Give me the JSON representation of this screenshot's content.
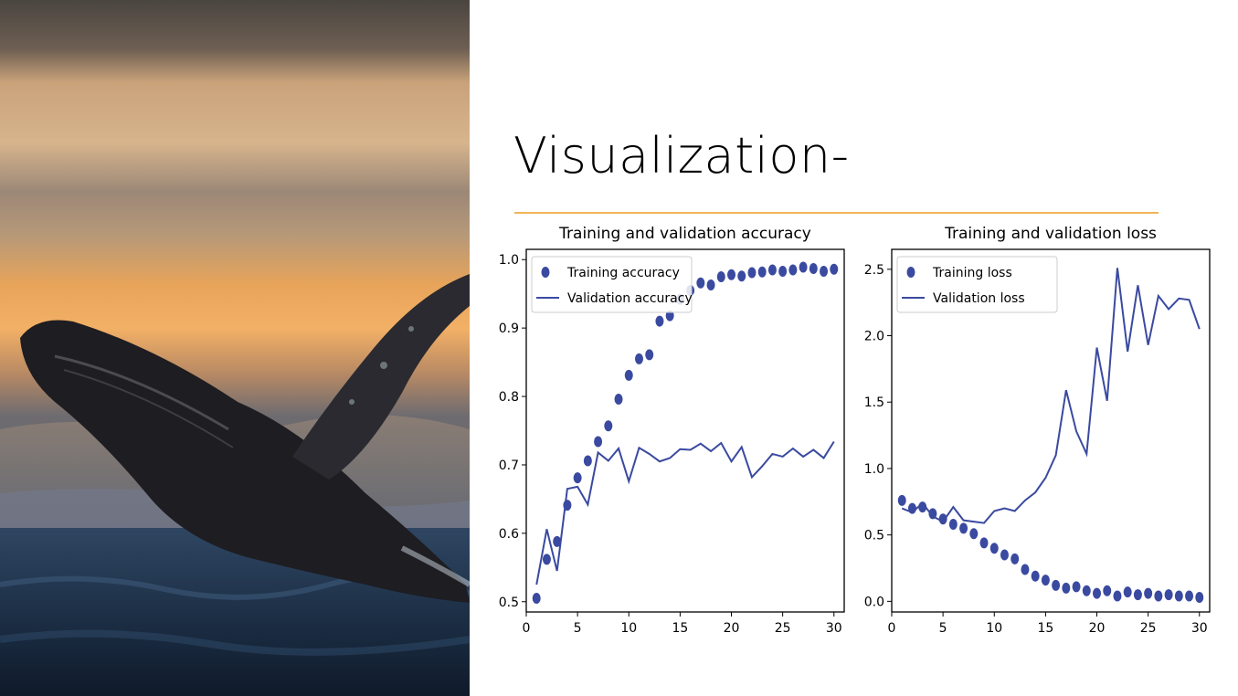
{
  "slide": {
    "title": "Visualization-",
    "accent_color": "#f0b45a",
    "photo": {
      "subject": "humpback whale breaching at sunset"
    }
  },
  "chart_data": [
    {
      "type": "scatter+line",
      "title": "Training and validation accuracy",
      "xlim": [
        0,
        31
      ],
      "ylim": [
        0.485,
        1.015
      ],
      "xticks": [
        0,
        5,
        10,
        15,
        20,
        25,
        30
      ],
      "yticks": [
        0.5,
        0.6,
        0.7,
        0.8,
        0.9,
        1.0
      ],
      "ytick_labels": [
        "0.5",
        "0.6",
        "0.7",
        "0.8",
        "0.9",
        "1.0"
      ],
      "legend_position": "top-left",
      "grid": false,
      "x": [
        1,
        2,
        3,
        4,
        5,
        6,
        7,
        8,
        9,
        10,
        11,
        12,
        13,
        14,
        15,
        16,
        17,
        18,
        19,
        20,
        21,
        22,
        23,
        24,
        25,
        26,
        27,
        28,
        29,
        30
      ],
      "series": [
        {
          "name": "Training accuracy",
          "style": "dots",
          "color": "#3a4aa0",
          "values": [
            0.505,
            0.562,
            0.588,
            0.641,
            0.681,
            0.706,
            0.734,
            0.757,
            0.796,
            0.831,
            0.855,
            0.861,
            0.91,
            0.918,
            0.942,
            0.955,
            0.966,
            0.963,
            0.975,
            0.978,
            0.976,
            0.981,
            0.982,
            0.985,
            0.983,
            0.985,
            0.989,
            0.987,
            0.983,
            0.986
          ]
        },
        {
          "name": "Validation accuracy",
          "style": "line",
          "color": "#3a4aa0",
          "values": [
            0.525,
            0.606,
            0.545,
            0.665,
            0.668,
            0.642,
            0.718,
            0.706,
            0.724,
            0.676,
            0.725,
            0.716,
            0.705,
            0.71,
            0.723,
            0.722,
            0.731,
            0.72,
            0.732,
            0.705,
            0.726,
            0.682,
            0.698,
            0.716,
            0.712,
            0.724,
            0.712,
            0.722,
            0.71,
            0.734
          ]
        }
      ]
    },
    {
      "type": "scatter+line",
      "title": "Training and validation loss",
      "xlim": [
        0,
        31
      ],
      "ylim": [
        -0.08,
        2.65
      ],
      "xticks": [
        0,
        5,
        10,
        15,
        20,
        25,
        30
      ],
      "yticks": [
        0.0,
        0.5,
        1.0,
        1.5,
        2.0,
        2.5
      ],
      "ytick_labels": [
        "0.0",
        "0.5",
        "1.0",
        "1.5",
        "2.0",
        "2.5"
      ],
      "legend_position": "top-left",
      "grid": false,
      "x": [
        1,
        2,
        3,
        4,
        5,
        6,
        7,
        8,
        9,
        10,
        11,
        12,
        13,
        14,
        15,
        16,
        17,
        18,
        19,
        20,
        21,
        22,
        23,
        24,
        25,
        26,
        27,
        28,
        29,
        30
      ],
      "series": [
        {
          "name": "Training loss",
          "style": "dots",
          "color": "#3a4aa0",
          "values": [
            0.76,
            0.7,
            0.71,
            0.66,
            0.62,
            0.58,
            0.55,
            0.51,
            0.44,
            0.4,
            0.35,
            0.32,
            0.24,
            0.19,
            0.16,
            0.12,
            0.1,
            0.11,
            0.08,
            0.06,
            0.08,
            0.04,
            0.07,
            0.05,
            0.06,
            0.04,
            0.05,
            0.04,
            0.04,
            0.03
          ]
        },
        {
          "name": "Validation loss",
          "style": "line",
          "color": "#3a4aa0",
          "values": [
            0.7,
            0.67,
            0.74,
            0.64,
            0.6,
            0.71,
            0.61,
            0.6,
            0.59,
            0.68,
            0.7,
            0.68,
            0.76,
            0.82,
            0.93,
            1.1,
            1.59,
            1.28,
            1.11,
            1.91,
            1.51,
            2.51,
            1.88,
            2.38,
            1.93,
            2.3,
            2.2,
            2.28,
            2.27,
            2.05
          ]
        }
      ]
    }
  ]
}
